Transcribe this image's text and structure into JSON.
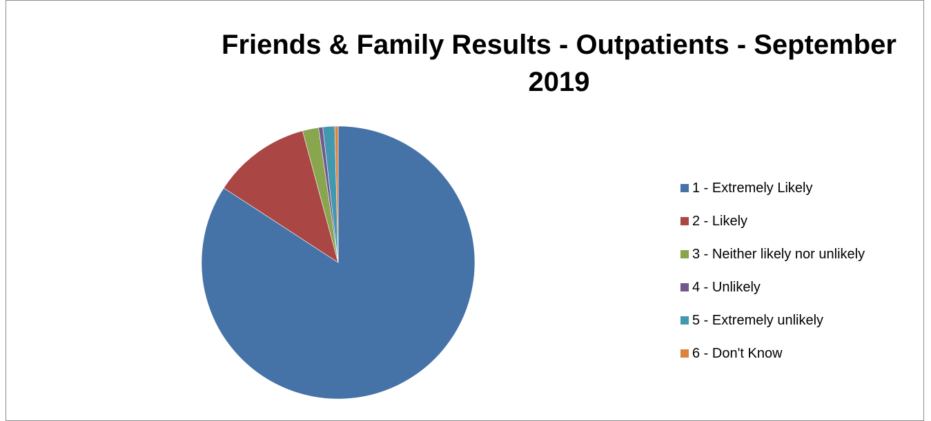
{
  "chart_data": {
    "type": "pie",
    "title": "Friends & Family Results - Outpatients - September 2019",
    "title_lines": [
      "Friends & Family Results - Outpatients - September",
      "2019"
    ],
    "categories": [
      "1 - Extremely Likely",
      "2 - Likely",
      "3 - Neither likely nor unlikely",
      "4 - Unlikely",
      "5 - Extremely unlikely",
      "6 - Don't Know"
    ],
    "values": [
      84.2,
      11.6,
      1.9,
      0.5,
      1.4,
      0.4
    ],
    "colors": [
      "#4572a7",
      "#aa4643",
      "#89a54e",
      "#71588f",
      "#4198af",
      "#db843d"
    ],
    "legend_position": "right",
    "start_angle": "12 o'clock, clockwise"
  }
}
